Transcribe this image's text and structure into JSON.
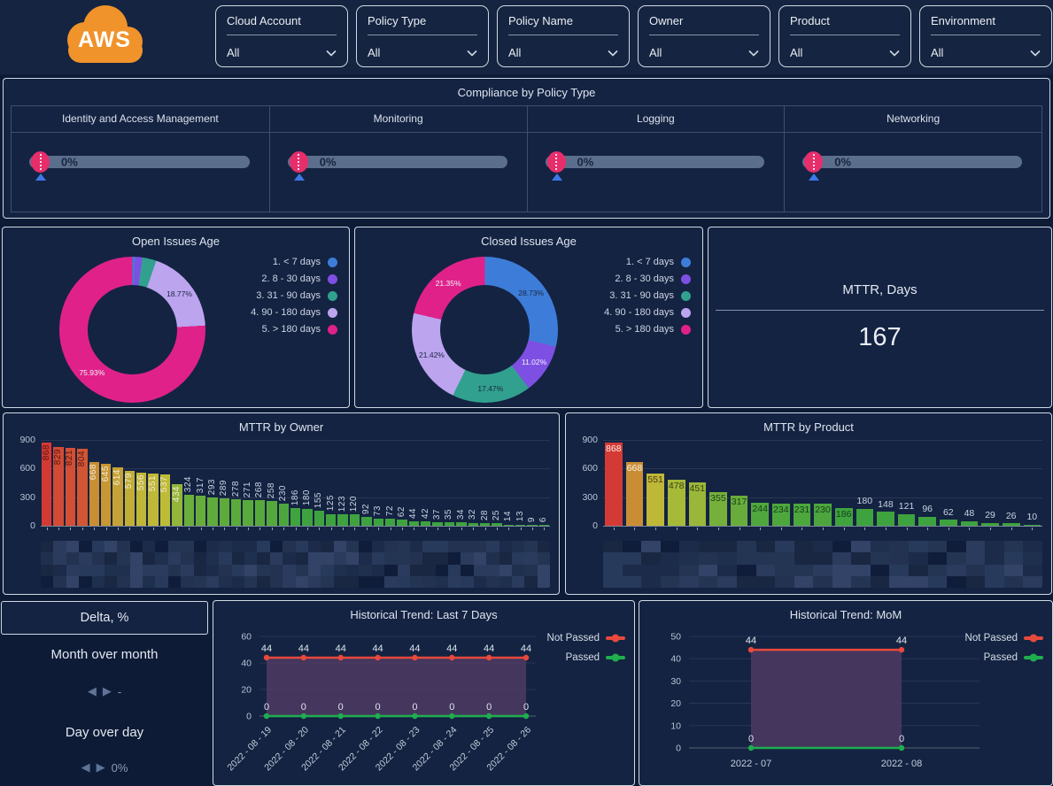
{
  "logo": {
    "text": "AWS",
    "color": "#f0932b"
  },
  "filters": [
    {
      "label": "Cloud Account",
      "value": "All"
    },
    {
      "label": "Policy Type",
      "value": "All"
    },
    {
      "label": "Policy Name",
      "value": "All"
    },
    {
      "label": "Owner",
      "value": "All"
    },
    {
      "label": "Product",
      "value": "All"
    },
    {
      "label": "Environment",
      "value": "All"
    }
  ],
  "compliance": {
    "title": "Compliance by Policy Type",
    "columns": [
      {
        "label": "Identity and Access Management",
        "value": "0%",
        "percent": 0
      },
      {
        "label": "Monitoring",
        "value": "0%",
        "percent": 0
      },
      {
        "label": "Logging",
        "value": "0%",
        "percent": 0
      },
      {
        "label": "Networking",
        "value": "0%",
        "percent": 0
      }
    ]
  },
  "mttr_stat": {
    "title": "MTTR, Days",
    "value": "167"
  },
  "delta": {
    "title": "Delta, %",
    "rows": [
      {
        "label": "Month over month",
        "value": "-"
      },
      {
        "label": "Day over day",
        "value": "0%"
      }
    ]
  },
  "colors": {
    "donut": [
      "#3d7dd9",
      "#7e4fe3",
      "#31a08e",
      "#bca4ef",
      "#e0218a"
    ],
    "not_passed": "#e8493c",
    "passed": "#1fae4e",
    "trend_fill": "#4d3963",
    "gauge_track": "#5b6e8c",
    "gauge_marker": "#e62e6b",
    "gauge_pointer": "#3d78e8"
  },
  "chart_data": [
    {
      "id": "open_issues_age",
      "type": "pie",
      "donut": true,
      "title": "Open Issues Age",
      "labels": [
        "1. < 7 days",
        "2. 8 - 30 days",
        "3. 31 - 90 days",
        "4. 90 - 180 days",
        "5. > 180 days"
      ],
      "values": [
        0.56,
        1.64,
        3.1,
        18.77,
        75.93
      ],
      "shown_labels": [
        "",
        "",
        "",
        "18.77%",
        "75.93%"
      ],
      "legend_position": "right"
    },
    {
      "id": "closed_issues_age",
      "type": "pie",
      "donut": true,
      "title": "Closed Issues Age",
      "labels": [
        "1. < 7 days",
        "2. 8 - 30 days",
        "3. 31 - 90 days",
        "4. 90 - 180 days",
        "5. > 180 days"
      ],
      "values": [
        28.73,
        11.02,
        17.47,
        21.42,
        21.35
      ],
      "shown_labels": [
        "28.73%",
        "11.02%",
        "17.47%",
        "21.42%",
        "21.35%"
      ],
      "legend_position": "right"
    },
    {
      "id": "mttr_by_owner",
      "type": "bar",
      "title": "MTTR by Owner",
      "x_labels": "redacted",
      "values": [
        868,
        829,
        821,
        804,
        668,
        645,
        614,
        579,
        556,
        551,
        537,
        434,
        324,
        317,
        293,
        289,
        278,
        271,
        268,
        258,
        230,
        186,
        180,
        155,
        125,
        123,
        120,
        92,
        73,
        72,
        62,
        44,
        42,
        37,
        35,
        34,
        32,
        28,
        25,
        14,
        13,
        9,
        6
      ],
      "ylim": [
        0,
        900
      ],
      "yticks": [
        0,
        300,
        600,
        900
      ]
    },
    {
      "id": "mttr_by_product",
      "type": "bar",
      "title": "MTTR by Product",
      "x_labels": "redacted",
      "values": [
        868,
        668,
        551,
        478,
        451,
        355,
        317,
        244,
        234,
        231,
        230,
        186,
        180,
        148,
        121,
        96,
        62,
        48,
        29,
        26,
        10
      ],
      "ylim": [
        0,
        900
      ],
      "yticks": [
        0,
        300,
        600,
        900
      ]
    },
    {
      "id": "trend_last7",
      "type": "line",
      "title": "Historical Trend: Last 7 Days",
      "x": [
        "2022 - 08 - 19",
        "2022 - 08 - 20",
        "2022 - 08 - 21",
        "2022 - 08 - 22",
        "2022 - 08 - 23",
        "2022 - 08 - 24",
        "2022 - 08 - 25",
        "2022 - 08 - 26"
      ],
      "series": [
        {
          "name": "Not Passed",
          "values": [
            44,
            44,
            44,
            44,
            44,
            44,
            44,
            44
          ],
          "color_key": "not_passed"
        },
        {
          "name": "Passed",
          "values": [
            0,
            0,
            0,
            0,
            0,
            0,
            0,
            0
          ],
          "color_key": "passed"
        }
      ],
      "ylim": [
        0,
        60
      ],
      "yticks": [
        0,
        20,
        40,
        60
      ],
      "x_label_rotation": -45,
      "legend_position": "right"
    },
    {
      "id": "trend_mom",
      "type": "line",
      "title": "Historical Trend: MoM",
      "x": [
        "2022 - 07",
        "2022 - 08"
      ],
      "series": [
        {
          "name": "Not Passed",
          "values": [
            44,
            44
          ],
          "color_key": "not_passed"
        },
        {
          "name": "Passed",
          "values": [
            0,
            0
          ],
          "color_key": "passed"
        }
      ],
      "ylim": [
        0,
        50
      ],
      "yticks": [
        0,
        10,
        20,
        30,
        40,
        50
      ],
      "x_label_rotation": 0,
      "legend_position": "right"
    }
  ]
}
